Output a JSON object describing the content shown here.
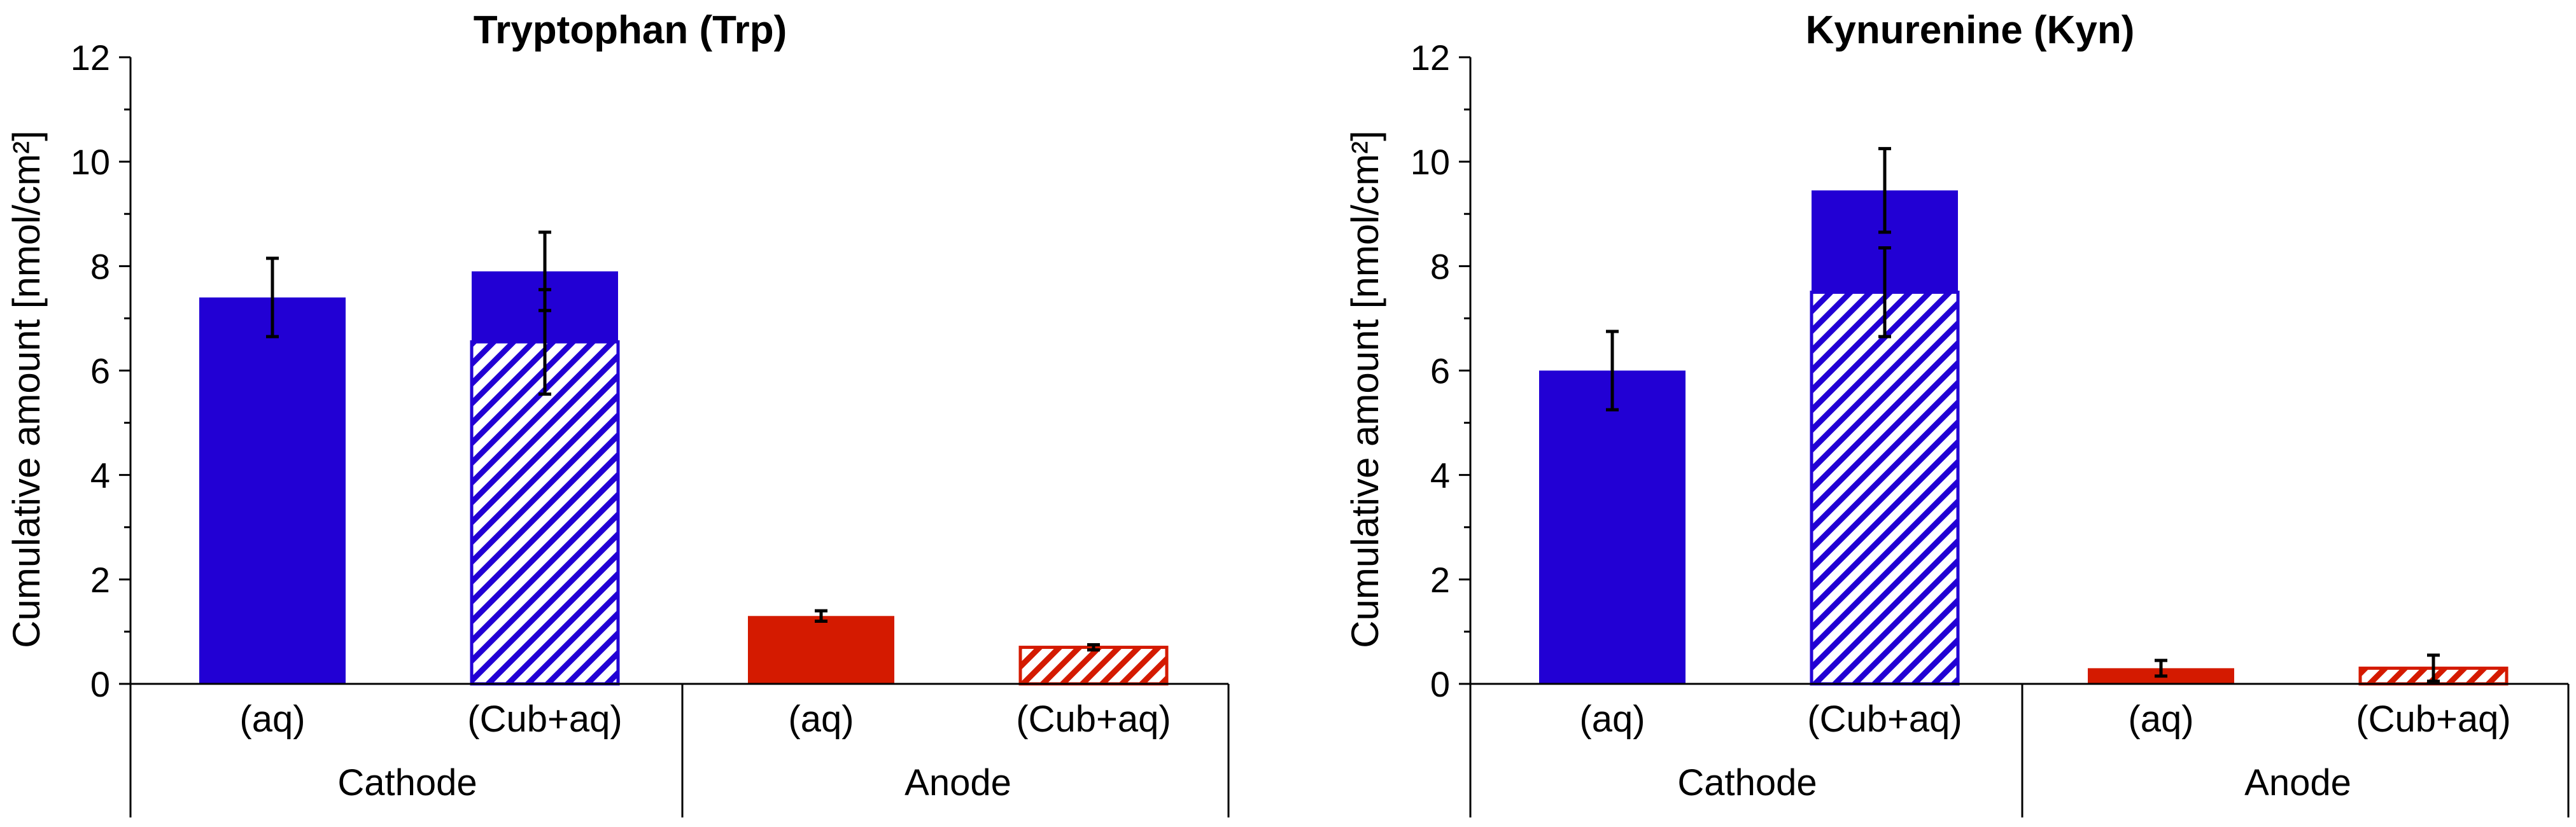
{
  "colors": {
    "cathode": "#2200d4",
    "anode": "#d41a00",
    "axis": "#000000",
    "errorbar": "#000000",
    "background": "#ffffff"
  },
  "chart_data": [
    {
      "type": "bar",
      "title": "Tryptophan (Trp)",
      "ylabel": "Cumulative amount [nmol/cm²]",
      "ylim": [
        0,
        12
      ],
      "yticks": [
        "0",
        "2",
        "4",
        "6",
        "8",
        "10",
        "12"
      ],
      "groups": [
        {
          "label": "Cathode",
          "categories": [
            "(aq)",
            "(Cub+aq)"
          ]
        },
        {
          "label": "Anode",
          "categories": [
            "(aq)",
            "(Cub+aq)"
          ]
        }
      ],
      "bars": [
        {
          "group": "Cathode",
          "category": "(aq)",
          "total": 7.4,
          "total_err": 0.75,
          "hatched_part": null,
          "hatched_err": null
        },
        {
          "group": "Cathode",
          "category": "(Cub+aq)",
          "total": 7.9,
          "total_err": 0.75,
          "hatched_part": 6.55,
          "hatched_err": 1.0
        },
        {
          "group": "Anode",
          "category": "(aq)",
          "total": 1.3,
          "total_err": 0.1,
          "hatched_part": null,
          "hatched_err": null
        },
        {
          "group": "Anode",
          "category": "(Cub+aq)",
          "total": 0.7,
          "total_err": 0.05,
          "hatched_part": 0.7,
          "hatched_err": null
        }
      ]
    },
    {
      "type": "bar",
      "title": "Kynurenine (Kyn)",
      "ylabel": "Cumulative amount [nmol/cm²]",
      "ylim": [
        0,
        12
      ],
      "yticks": [
        "0",
        "2",
        "4",
        "6",
        "8",
        "10",
        "12"
      ],
      "groups": [
        {
          "label": "Cathode",
          "categories": [
            "(aq)",
            "(Cub+aq)"
          ]
        },
        {
          "label": "Anode",
          "categories": [
            "(aq)",
            "(Cub+aq)"
          ]
        }
      ],
      "bars": [
        {
          "group": "Cathode",
          "category": "(aq)",
          "total": 6.0,
          "total_err": 0.75,
          "hatched_part": null,
          "hatched_err": null
        },
        {
          "group": "Cathode",
          "category": "(Cub+aq)",
          "total": 9.45,
          "total_err": 0.8,
          "hatched_part": 7.5,
          "hatched_err": 0.85
        },
        {
          "group": "Anode",
          "category": "(aq)",
          "total": 0.3,
          "total_err": 0.15,
          "hatched_part": null,
          "hatched_err": null
        },
        {
          "group": "Anode",
          "category": "(Cub+aq)",
          "total": 0.3,
          "total_err": 0.25,
          "hatched_part": 0.3,
          "hatched_err": null
        }
      ]
    }
  ]
}
